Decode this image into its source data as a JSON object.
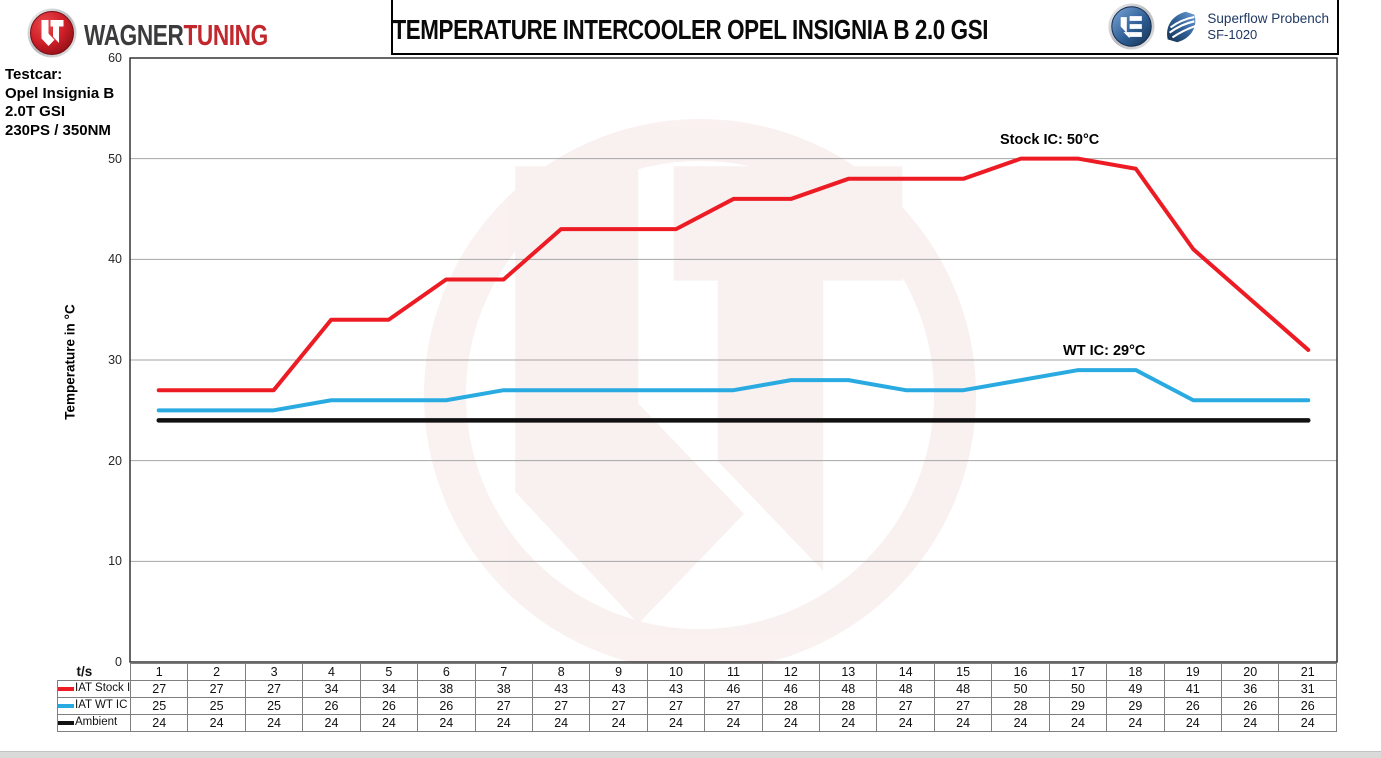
{
  "header": {
    "brand": {
      "wagner": "WAGNER",
      "tuning": "TUNING"
    },
    "bench": {
      "line1": "Superflow Probench",
      "line2": "SF-1020"
    }
  },
  "testcar": {
    "label": "Testcar:",
    "lines": [
      "Opel Insignia B",
      "2.0T GSI",
      "230PS / 350NM"
    ]
  },
  "chart_data": {
    "type": "line",
    "title": "TEMPERATURE INTERCOOLER OPEL INSIGNIA B 2.0 GSI",
    "xlabel": "t/s",
    "ylabel": "Temperature in °C",
    "ylim": [
      0,
      60
    ],
    "yticks": [
      0,
      10,
      20,
      30,
      40,
      50,
      60
    ],
    "grid": true,
    "legend_position": "table-left",
    "x": [
      1,
      2,
      3,
      4,
      5,
      6,
      7,
      8,
      9,
      10,
      11,
      12,
      13,
      14,
      15,
      16,
      17,
      18,
      19,
      20,
      21
    ],
    "series": [
      {
        "name": "IAT Stock IC",
        "color": "#ed1c24",
        "values": [
          27,
          27,
          27,
          34,
          34,
          38,
          38,
          43,
          43,
          43,
          46,
          46,
          48,
          48,
          48,
          50,
          50,
          49,
          41,
          36,
          31
        ]
      },
      {
        "name": "IAT WT IC",
        "color": "#29abe2",
        "values": [
          25,
          25,
          25,
          26,
          26,
          26,
          27,
          27,
          27,
          27,
          27,
          28,
          28,
          27,
          27,
          28,
          29,
          29,
          26,
          26,
          26
        ]
      },
      {
        "name": "Ambient",
        "color": "#111111",
        "values": [
          24,
          24,
          24,
          24,
          24,
          24,
          24,
          24,
          24,
          24,
          24,
          24,
          24,
          24,
          24,
          24,
          24,
          24,
          24,
          24,
          24
        ]
      }
    ],
    "annotations": [
      {
        "text": "Stock IC: 50°C",
        "ax": 16.5,
        "ay": 50
      },
      {
        "text": "WT IC: 29°C",
        "ax": 17.45,
        "ay": 29
      }
    ]
  }
}
